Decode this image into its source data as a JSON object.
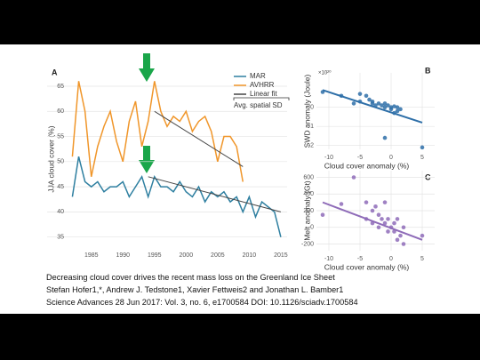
{
  "chart_data": [
    {
      "type": "line",
      "letter": "A",
      "ylabel": "JJA cloud cover (%)",
      "annotation": "Avg. spatial SD",
      "x": [
        1982,
        1983,
        1984,
        1985,
        1986,
        1987,
        1988,
        1989,
        1990,
        1991,
        1992,
        1993,
        1994,
        1995,
        1996,
        1997,
        1998,
        1999,
        2000,
        2001,
        2002,
        2003,
        2004,
        2005,
        2006,
        2007,
        2008,
        2009,
        2010,
        2011,
        2012,
        2013,
        2014,
        2015
      ],
      "series": [
        {
          "name": "MAR",
          "color": "#2e7fa0",
          "values": [
            43,
            51,
            46,
            45,
            46,
            44,
            45,
            45,
            46,
            43,
            45,
            47,
            43,
            47,
            45,
            45,
            44,
            46,
            44,
            43,
            45,
            42,
            44,
            43,
            44,
            42,
            43,
            40,
            43,
            39,
            42,
            41,
            40,
            35
          ]
        },
        {
          "name": "AVHRR",
          "color": "#f0962a",
          "values": [
            51,
            66,
            60,
            47,
            53,
            57,
            60,
            54,
            50,
            58,
            62,
            53,
            58,
            66,
            60,
            57,
            59,
            58,
            60,
            56,
            58,
            59,
            56,
            50,
            55,
            55,
            53,
            46,
            null,
            null,
            null,
            null,
            null,
            null
          ]
        },
        {
          "name": "Linear fit",
          "color": "#444444",
          "pieces": [
            {
              "x": [
                1995,
                2009
              ],
              "values": [
                60,
                49
              ]
            },
            {
              "x": [
                1994,
                2015
              ],
              "values": [
                47,
                40
              ]
            }
          ]
        }
      ],
      "xlim": [
        1978,
        2016
      ],
      "ylim": [
        33,
        68
      ],
      "xticks": [
        1985,
        1990,
        1995,
        2000,
        2005,
        2010,
        2015
      ],
      "yticks": [
        35,
        40,
        45,
        50,
        55,
        60,
        65
      ],
      "grid": true
    },
    {
      "type": "scatter",
      "letter": "B",
      "ylabel": "SWD anomaly (Joule)",
      "xlabel": "Cloud cover anomaly (%)",
      "unit": "×10²⁰",
      "color": "#2e6fa8",
      "x": [
        -11,
        -8,
        -6,
        -5,
        -4,
        -3.5,
        -3,
        -2.5,
        -2,
        -1.5,
        -1,
        -1,
        -0.5,
        0,
        0,
        0.5,
        1,
        1,
        1.5,
        -1,
        5,
        -5,
        -3,
        0.5
      ],
      "values": [
        0.8,
        0.6,
        0.2,
        0.3,
        0.6,
        0.4,
        0.3,
        0.1,
        0.2,
        0.1,
        0,
        0.2,
        0.1,
        0,
        -0.1,
        0.05,
        -0.2,
        0,
        -0.1,
        -1.6,
        -2.1,
        0.7,
        0.2,
        -0.3
      ],
      "fit": {
        "x": [
          -11,
          5
        ],
        "values": [
          0.9,
          -0.8
        ]
      },
      "xlim": [
        -12,
        7
      ],
      "ylim": [
        -2.2,
        1.8
      ],
      "xticks": [
        -10,
        -5,
        0,
        5
      ],
      "yticks": [
        -2,
        -1,
        0
      ],
      "grid": true
    },
    {
      "type": "scatter",
      "letter": "C",
      "ylabel": "Melt anomaly (Gt)",
      "xlabel": "Cloud cover anomaly (%)",
      "color": "#8e6bb8",
      "x": [
        -6,
        -8,
        -11,
        -4,
        -3,
        -2.5,
        -2,
        -1.5,
        -1,
        -1,
        -0.5,
        0,
        0.5,
        0.5,
        1,
        1.5,
        2,
        -2,
        5,
        -4,
        -3,
        1,
        -0.5,
        2
      ],
      "values": [
        600,
        280,
        150,
        300,
        200,
        250,
        150,
        100,
        300,
        50,
        100,
        0,
        50,
        -50,
        100,
        -100,
        0,
        0,
        -100,
        100,
        50,
        -150,
        -50,
        -200
      ],
      "fit": {
        "x": [
          -11,
          5
        ],
        "values": [
          300,
          -150
        ]
      },
      "xlim": [
        -12,
        7
      ],
      "ylim": [
        -280,
        680
      ],
      "xticks": [
        -10,
        -5,
        0,
        5
      ],
      "yticks": [
        -200,
        0,
        200,
        400,
        600
      ],
      "grid": true
    }
  ],
  "caption": [
    "Decreasing cloud cover drives the recent mass loss on the Greenland Ice Sheet",
    "Stefan Hofer1,*, Andrew J. Tedstone1, Xavier Fettweis2 and Jonathan L. Bamber1",
    "Science Advances  28 Jun 2017: Vol. 3, no. 6, e1700584 DOI: 10.1126/sciadv.1700584"
  ]
}
